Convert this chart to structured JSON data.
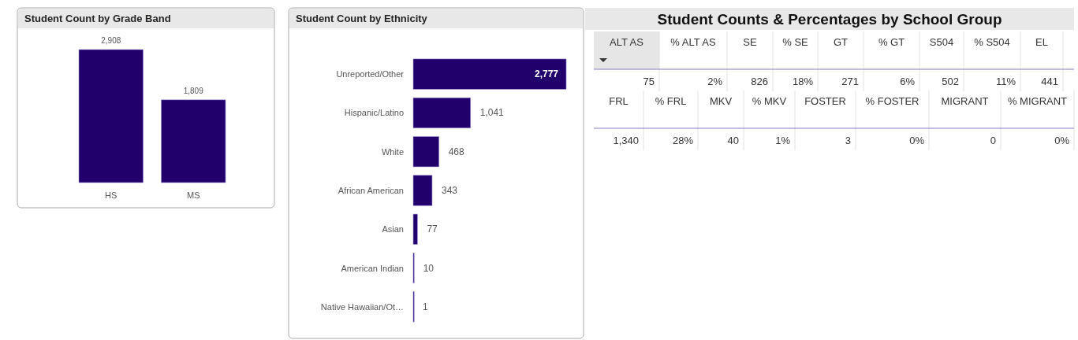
{
  "chart_data": [
    {
      "type": "bar",
      "title": "Student Count by Grade Band",
      "categories": [
        "HS",
        "MS"
      ],
      "values": [
        2908,
        1809
      ],
      "value_labels": [
        "2,908",
        "1,809"
      ],
      "color": "#21006b"
    },
    {
      "type": "bar",
      "orientation": "horizontal",
      "title": "Student Count by Ethnicity",
      "categories": [
        "Unreported/Other",
        "Hispanic/Latino",
        "White",
        "African American",
        "Asian",
        "American Indian",
        "Native Hawaiian/Ot…"
      ],
      "values": [
        2777,
        1041,
        468,
        343,
        77,
        10,
        1
      ],
      "value_labels": [
        "2,777",
        "1,041",
        "468",
        "343",
        "77",
        "10",
        "1"
      ],
      "color": "#21006b"
    },
    {
      "type": "other",
      "title": "Student Counts & Percentages by School Group",
      "categories": [
        "ALT AS",
        "% ALT AS",
        "SE",
        "% SE",
        "GT",
        "% GT",
        "S504",
        "% S504",
        "EL"
      ],
      "value_labels": [
        "75",
        "2%",
        "826",
        "18%",
        "271",
        "6%",
        "502",
        "11%",
        "441"
      ]
    },
    {
      "type": "other",
      "categories": [
        "FRL",
        "% FRL",
        "MKV",
        "% MKV",
        "FOSTER",
        "% FOSTER",
        "MIGRANT",
        "% MIGRANT"
      ],
      "value_labels": [
        "1,340",
        "28%",
        "40",
        "1%",
        "3",
        "0%",
        "0",
        "0%"
      ]
    }
  ]
}
